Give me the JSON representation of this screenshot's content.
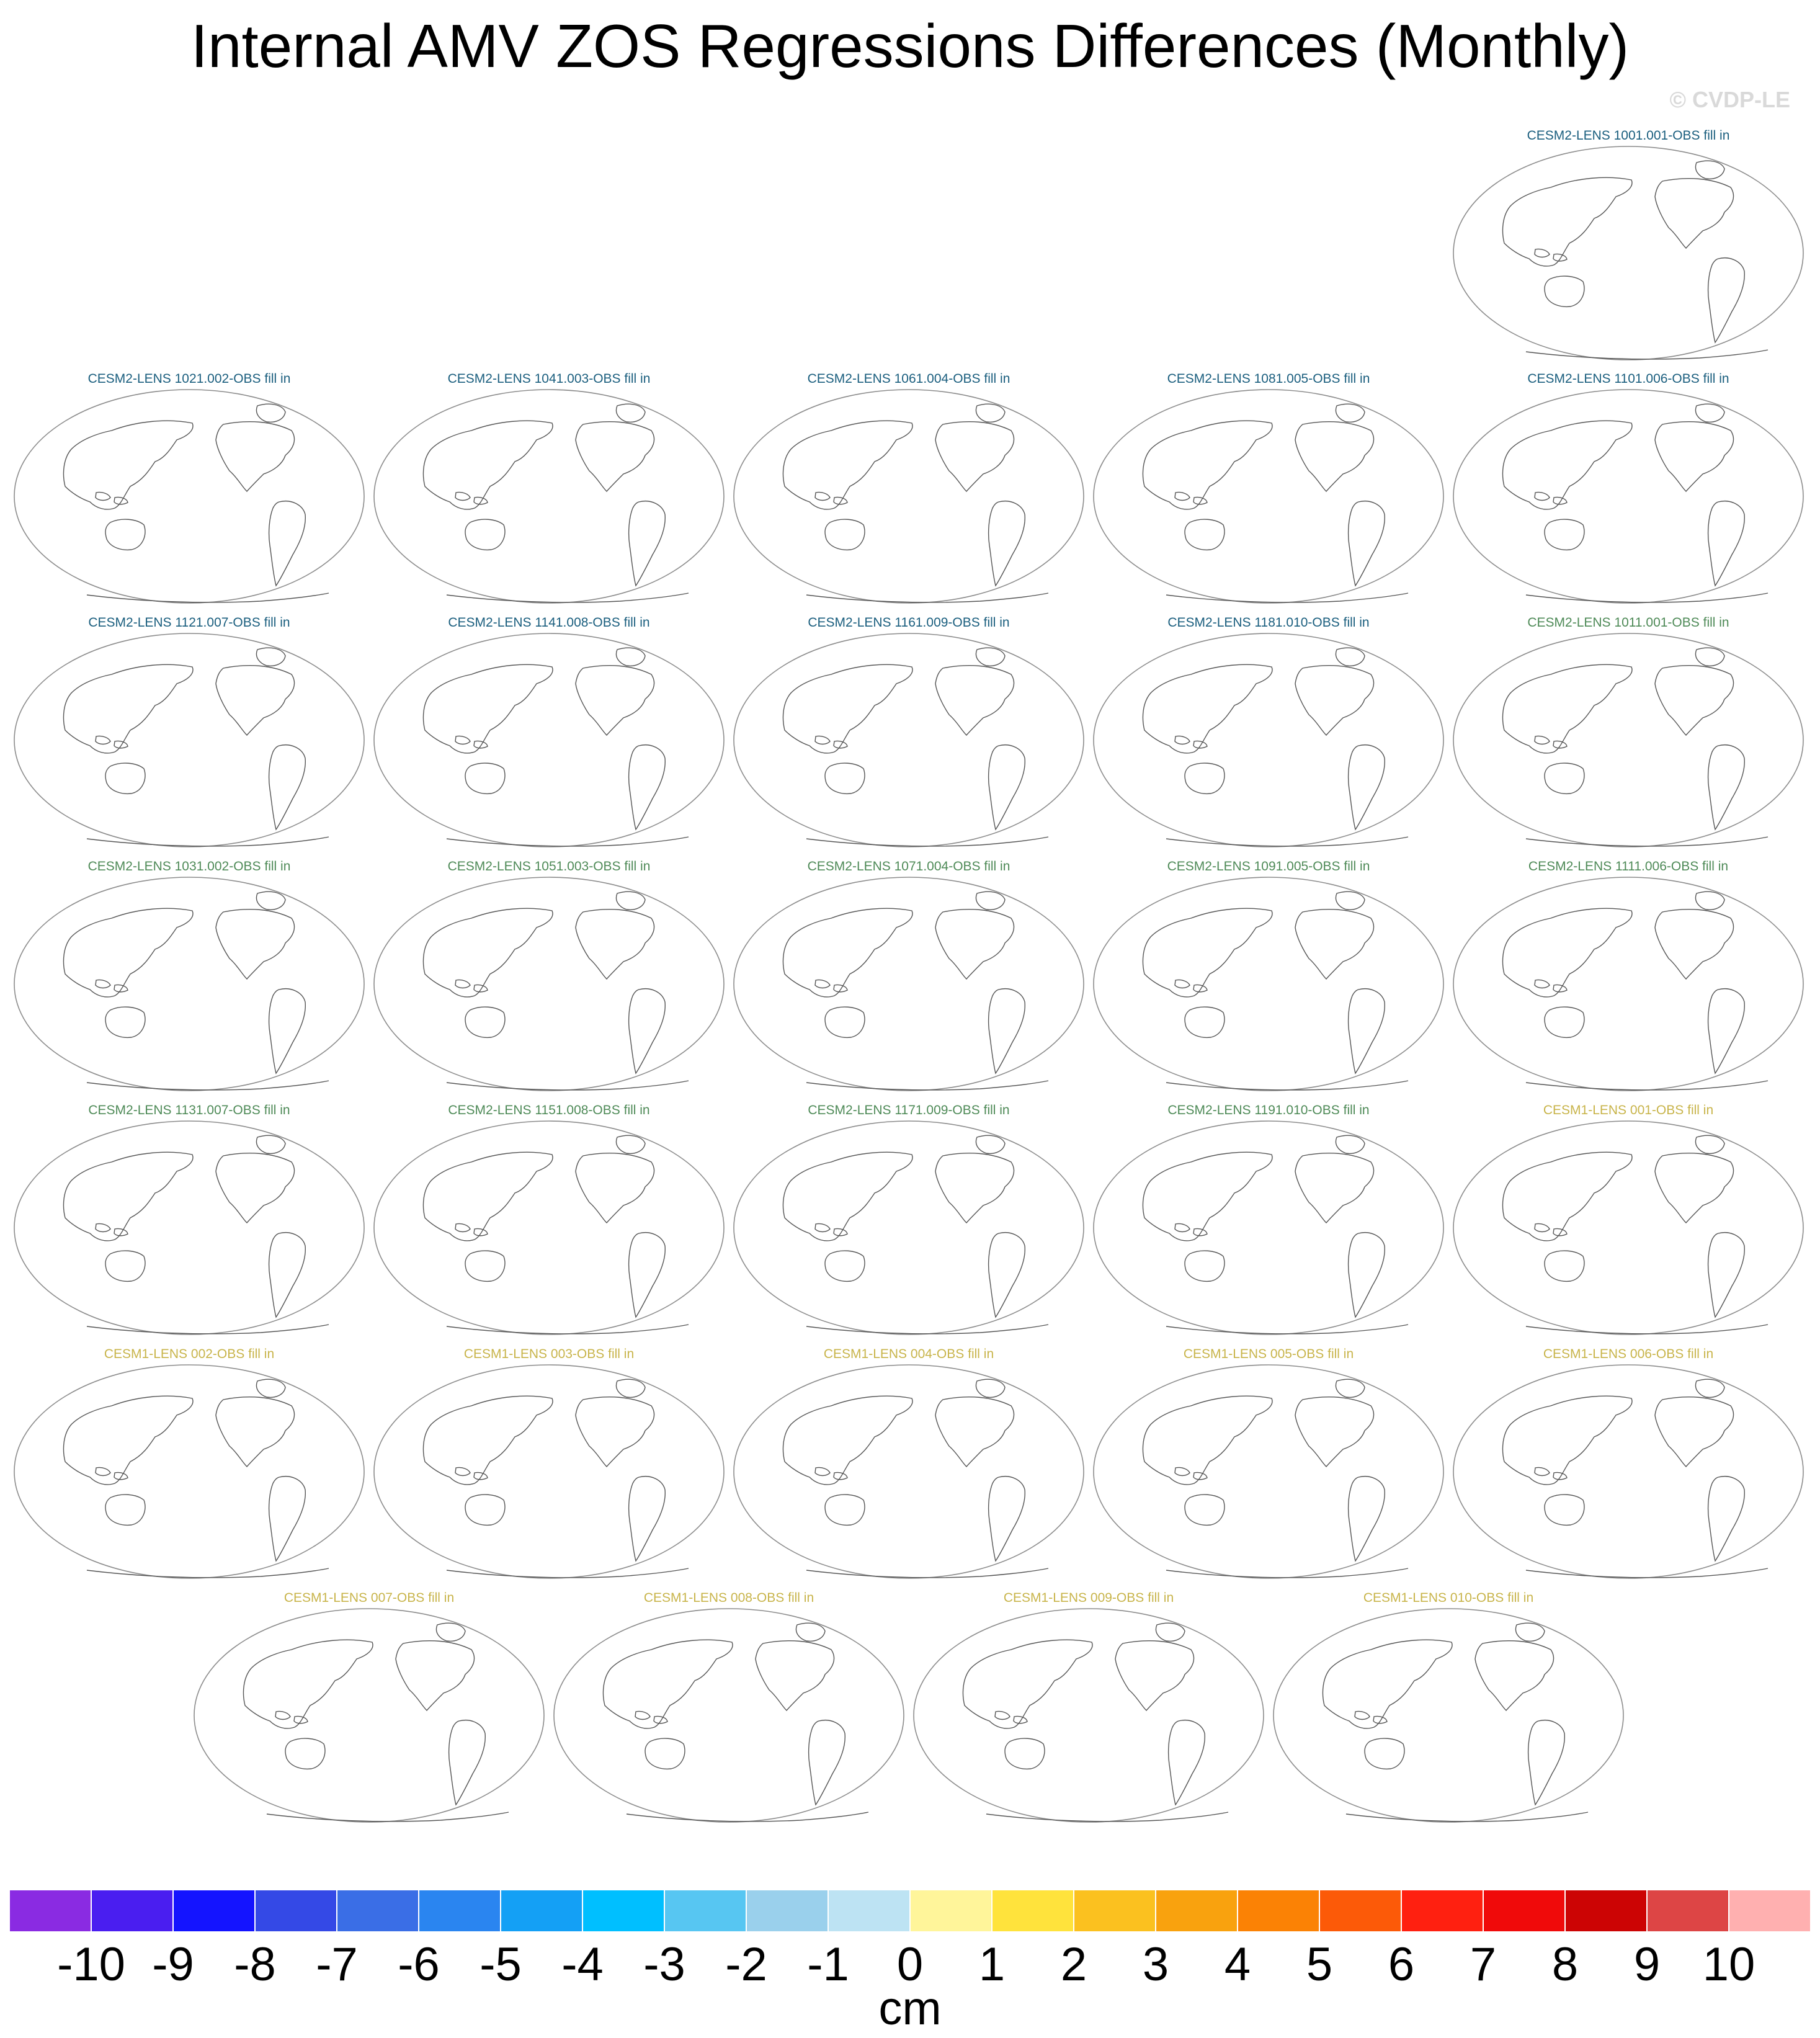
{
  "title": "Internal AMV ZOS Regressions Differences (Monthly)",
  "watermark": "© CVDP-LE",
  "colors": {
    "cesm2_1001": "#1a5e7e",
    "cesm2_1011": "#4e8a57",
    "cesm1": "#c8b44a",
    "map_outline": "#8c8c8c",
    "coast": "#555555"
  },
  "panels": [
    {
      "label": "CESM2-LENS 1001.001-OBS fill in",
      "group": "cesm2_1001"
    },
    {
      "label": "CESM2-LENS 1021.002-OBS fill in",
      "group": "cesm2_1001"
    },
    {
      "label": "CESM2-LENS 1041.003-OBS fill in",
      "group": "cesm2_1001"
    },
    {
      "label": "CESM2-LENS 1061.004-OBS fill in",
      "group": "cesm2_1001"
    },
    {
      "label": "CESM2-LENS 1081.005-OBS fill in",
      "group": "cesm2_1001"
    },
    {
      "label": "CESM2-LENS 1101.006-OBS fill in",
      "group": "cesm2_1001"
    },
    {
      "label": "CESM2-LENS 1121.007-OBS fill in",
      "group": "cesm2_1001"
    },
    {
      "label": "CESM2-LENS 1141.008-OBS fill in",
      "group": "cesm2_1001"
    },
    {
      "label": "CESM2-LENS 1161.009-OBS fill in",
      "group": "cesm2_1001"
    },
    {
      "label": "CESM2-LENS 1181.010-OBS fill in",
      "group": "cesm2_1001"
    },
    {
      "label": "CESM2-LENS 1011.001-OBS fill in",
      "group": "cesm2_1011"
    },
    {
      "label": "CESM2-LENS 1031.002-OBS fill in",
      "group": "cesm2_1011"
    },
    {
      "label": "CESM2-LENS 1051.003-OBS fill in",
      "group": "cesm2_1011"
    },
    {
      "label": "CESM2-LENS 1071.004-OBS fill in",
      "group": "cesm2_1011"
    },
    {
      "label": "CESM2-LENS 1091.005-OBS fill in",
      "group": "cesm2_1011"
    },
    {
      "label": "CESM2-LENS 1111.006-OBS fill in",
      "group": "cesm2_1011"
    },
    {
      "label": "CESM2-LENS 1131.007-OBS fill in",
      "group": "cesm2_1011"
    },
    {
      "label": "CESM2-LENS 1151.008-OBS fill in",
      "group": "cesm2_1011"
    },
    {
      "label": "CESM2-LENS 1171.009-OBS fill in",
      "group": "cesm2_1011"
    },
    {
      "label": "CESM2-LENS 1191.010-OBS fill in",
      "group": "cesm2_1011"
    },
    {
      "label": "CESM1-LENS 001-OBS fill in",
      "group": "cesm1"
    },
    {
      "label": "CESM1-LENS 002-OBS fill in",
      "group": "cesm1"
    },
    {
      "label": "CESM1-LENS 003-OBS fill in",
      "group": "cesm1"
    },
    {
      "label": "CESM1-LENS 004-OBS fill in",
      "group": "cesm1"
    },
    {
      "label": "CESM1-LENS 005-OBS fill in",
      "group": "cesm1"
    },
    {
      "label": "CESM1-LENS 006-OBS fill in",
      "group": "cesm1"
    },
    {
      "label": "CESM1-LENS 007-OBS fill in",
      "group": "cesm1"
    },
    {
      "label": "CESM1-LENS 008-OBS fill in",
      "group": "cesm1"
    },
    {
      "label": "CESM1-LENS 009-OBS fill in",
      "group": "cesm1"
    },
    {
      "label": "CESM1-LENS 010-OBS fill in",
      "group": "cesm1"
    }
  ],
  "colorbar": {
    "unit": "cm",
    "labels": [
      "-10",
      "-9",
      "-8",
      "-7",
      "-6",
      "-5",
      "-4",
      "-3",
      "-2",
      "-1",
      "0",
      "1",
      "2",
      "3",
      "4",
      "5",
      "6",
      "7",
      "8",
      "9",
      "10"
    ],
    "colors": [
      "#8a2be2",
      "#4a1ef0",
      "#1414ff",
      "#3449e6",
      "#3a6ee6",
      "#2a85f0",
      "#14a0f5",
      "#00bfff",
      "#57c6f2",
      "#9ad0ec",
      "#bde3f3",
      "#fff59a",
      "#ffe33c",
      "#fbc11f",
      "#f9a20e",
      "#fb8205",
      "#fc5a08",
      "#ff2010",
      "#f00a0a",
      "#cc0404",
      "#dd4545",
      "#ffb0b0"
    ]
  }
}
